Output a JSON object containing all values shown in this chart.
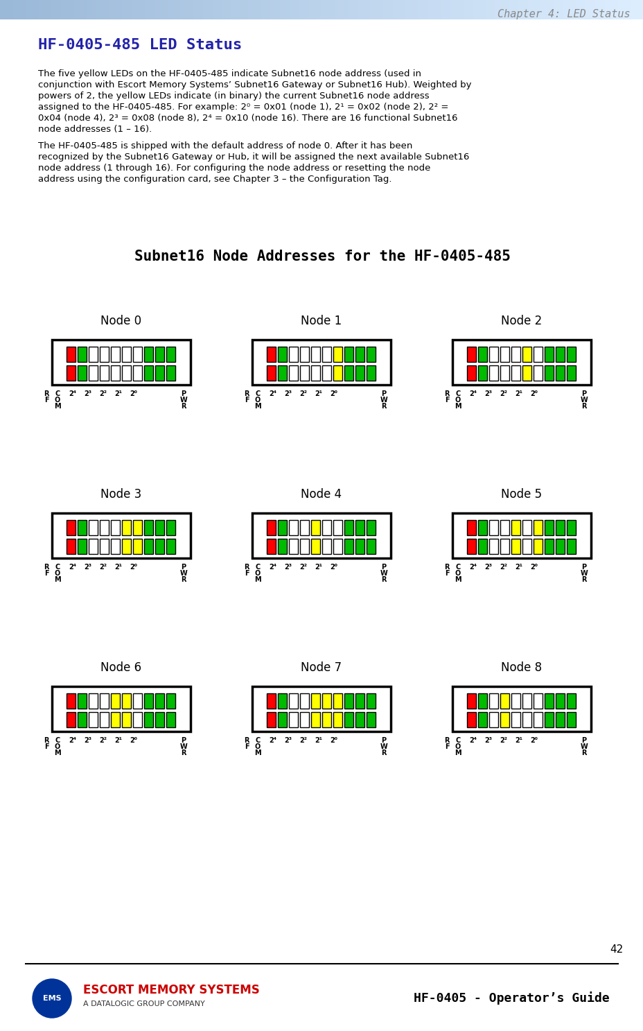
{
  "page_header": "Chapter 4: LED Status",
  "page_number": "42",
  "title": "HF-0405-485 LED Status",
  "subtitle": "Subnet16 Node Addresses for the HF-0405-485",
  "body_text": [
    "The five yellow LEDs on the HF-0405-485 indicate Subnet16 node address (used in conjunction with Escort Memory Systems’ Subnet16 Gateway or Subnet16 Hub). Weighted by powers of 2, the yellow LEDs indicate (in binary) the current Subnet16 node address assigned to the HF-0405-485. For example: 2⁰ = 0x01 (node 1), 2¹ = 0x02 (node 2), 2² = 0x04 (node 4), 2³ = 0x08 (node 8), 2⁴ = 0x10 (node 16). There are 16 functional Subnet16 node addresses (1 – 16).",
    "The HF-0405-485 is shipped with the default address of node 0. After it has been recognized by the Subnet16 Gateway or Hub, it will be assigned the next available Subnet16 node address (1 through 16). For configuring the node address or resetting the node address using the configuration card, see Chapter 3 – the Configuration Tag."
  ],
  "link_text": "Chapter 3 – the Configuration Tag",
  "nodes": [
    {
      "label": "Node 0",
      "leds": [
        1,
        1,
        0,
        0,
        0,
        0,
        0,
        1,
        1,
        1
      ]
    },
    {
      "label": "Node 1",
      "leds": [
        1,
        1,
        0,
        0,
        0,
        0,
        1,
        1,
        1,
        1
      ]
    },
    {
      "label": "Node 2",
      "leds": [
        1,
        1,
        0,
        0,
        0,
        1,
        0,
        1,
        1,
        1
      ]
    },
    {
      "label": "Node 3",
      "leds": [
        1,
        1,
        0,
        0,
        0,
        1,
        1,
        1,
        1,
        1
      ]
    },
    {
      "label": "Node 4",
      "leds": [
        1,
        1,
        0,
        0,
        1,
        0,
        0,
        1,
        1,
        1
      ]
    },
    {
      "label": "Node 5",
      "leds": [
        1,
        1,
        0,
        0,
        1,
        0,
        1,
        1,
        1,
        1
      ]
    },
    {
      "label": "Node 6",
      "leds": [
        1,
        1,
        0,
        0,
        1,
        1,
        0,
        1,
        1,
        1
      ]
    },
    {
      "label": "Node 7",
      "leds": [
        1,
        1,
        0,
        0,
        1,
        1,
        1,
        1,
        1,
        1
      ]
    },
    {
      "label": "Node 8",
      "leds": [
        1,
        1,
        0,
        1,
        0,
        0,
        0,
        1,
        1,
        1
      ]
    }
  ],
  "led_colors": {
    "red_on": "#FF0000",
    "red_off": "#FFFFFF",
    "green_on": "#00BB00",
    "green_off": "#FFFFFF",
    "yellow_on": "#FFFF00",
    "yellow_off": "#FFFFFF"
  },
  "led_types": [
    "red",
    "green",
    "yellow",
    "yellow",
    "yellow",
    "yellow",
    "yellow",
    "green",
    "green",
    "green"
  ],
  "led_labels_top": [
    "R\nF",
    "C\nO\nM",
    "2⁴",
    "2³",
    "2²",
    "2¹",
    "2⁰",
    "P\nW\nR",
    "",
    ""
  ],
  "company_name": "ESCORT MEMORY SYSTEMS",
  "company_sub": "A DATALOGIC GROUP COMPANY",
  "footer_right": "HF-0405 - Operator’s Guide",
  "header_bg": "#B8D0E8",
  "title_color": "#2222AA",
  "subtitle_color": "#000000",
  "box_color": "#000000",
  "led_count": 10
}
